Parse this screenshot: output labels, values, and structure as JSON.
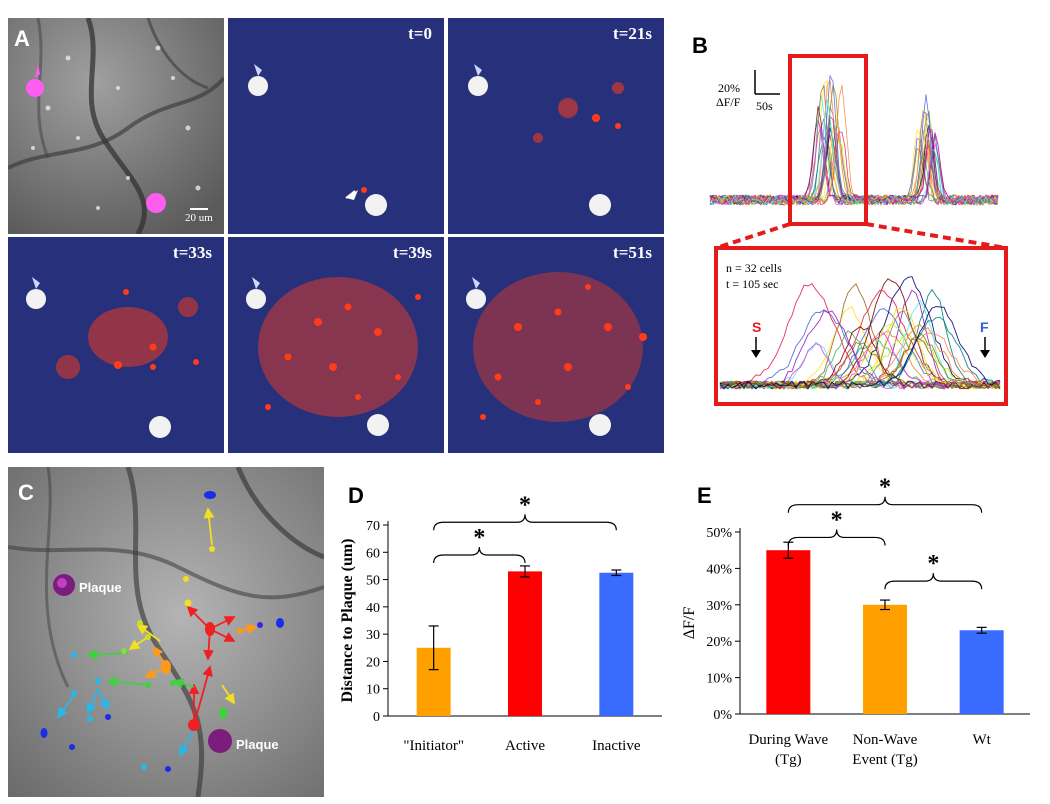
{
  "panel_letters": {
    "a": "A",
    "b": "B",
    "c": "C",
    "d": "D",
    "e": "E"
  },
  "panel_a": {
    "scale_bar_label": "20 um",
    "timepoints": [
      "t=0",
      "t=21s",
      "t=33s",
      "t=39s",
      "t=51s"
    ],
    "colors": {
      "grayscale_bg": "#7c7c7c",
      "overlay_bg": "#27307a",
      "cell_signal": "#ff3b1a",
      "plaque_marker": "#ff5cf0",
      "plaque": "#f2f2f2"
    }
  },
  "panel_b": {
    "scale_y_label_1": "20%",
    "scale_y_label_2": "ΔF/F",
    "scale_x_label": "50s",
    "info_line_1": "n = 32 cells",
    "info_line_2": "t = 105 sec",
    "start_label": "S",
    "finish_label": "F",
    "colors": {
      "box": "#e51b1b",
      "start": "#e51b1b",
      "finish": "#2a63e0"
    }
  },
  "panel_c": {
    "plaque_labels": [
      "Plaque",
      "Plaque"
    ],
    "colors": {
      "plaque": "#7a1d7d",
      "arrow_red": "#f02020",
      "arrow_orange": "#ff9a18",
      "arrow_yellow": "#f2e020",
      "arrow_green": "#40d040",
      "arrow_cyan": "#28b8e8",
      "arrow_blue": "#1a2ee8"
    }
  },
  "chart_data": [
    {
      "type": "bar",
      "panel": "D",
      "categories": [
        "\"Initiator\"",
        "Active",
        "Inactive"
      ],
      "values": [
        25,
        53,
        52.5
      ],
      "errors": [
        8,
        2,
        1
      ],
      "colors": [
        "#ffa000",
        "#ff0000",
        "#3a6bff"
      ],
      "ylabel": "Distance to Plaque (um)",
      "ylim": [
        0,
        70
      ],
      "yticks": [
        "0",
        "10",
        "20",
        "30",
        "40",
        "50",
        "60",
        "70"
      ],
      "significance": [
        "*",
        "*"
      ],
      "grid": false,
      "legend": "none"
    },
    {
      "type": "bar",
      "panel": "E",
      "categories": [
        "During Wave (Tg)",
        "Non-Wave Event (Tg)",
        "Wt"
      ],
      "category_lines": [
        [
          "During Wave",
          "(Tg)"
        ],
        [
          "Non-Wave",
          "Event (Tg)"
        ],
        [
          "Wt",
          ""
        ]
      ],
      "values": [
        45,
        30,
        23
      ],
      "errors": [
        2.2,
        1.3,
        0.8
      ],
      "colors": [
        "#ff0000",
        "#ffa000",
        "#3a6bff"
      ],
      "ylabel": "ΔF/F",
      "ylim": [
        0,
        50
      ],
      "yticks": [
        "0%",
        "10%",
        "20%",
        "30%",
        "40%",
        "50%"
      ],
      "significance": [
        "*",
        "*",
        "*"
      ],
      "grid": false,
      "legend": "none"
    }
  ]
}
